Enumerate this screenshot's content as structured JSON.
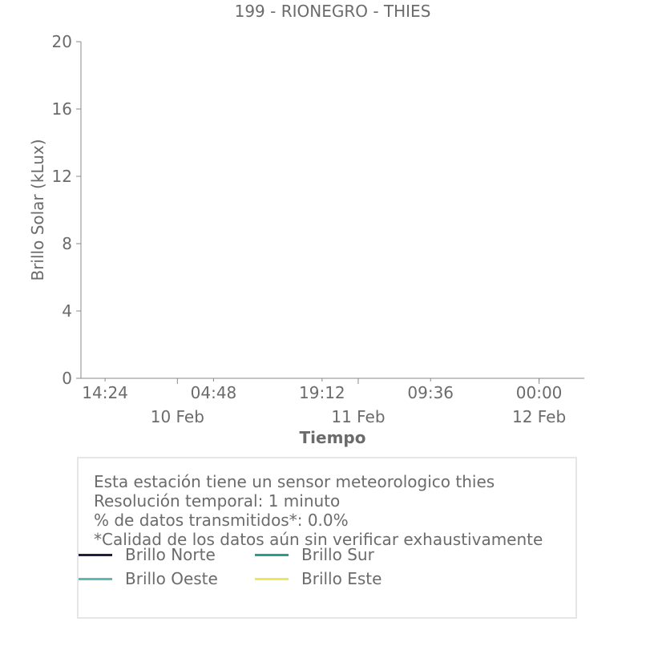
{
  "chart_data": {
    "type": "line",
    "title": "199 - RIONEGRO - THIES",
    "xlabel": "Tiempo",
    "ylabel": "Brillo Solar (kLux)",
    "ylim": [
      0,
      20
    ],
    "yticks": [
      0,
      4,
      8,
      12,
      16,
      20
    ],
    "xticks": [
      {
        "value": "2024-02-09T14:24",
        "label": "14:24"
      },
      {
        "value": "2024-02-10T04:48",
        "label": "04:48"
      },
      {
        "value": "2024-02-10T19:12",
        "label": "19:12"
      },
      {
        "value": "2024-02-11T09:36",
        "label": "09:36"
      },
      {
        "value": "2024-02-12T00:00",
        "label": "00:00"
      }
    ],
    "date_labels": [
      {
        "value": "2024-02-10T00:00",
        "label": "10 Feb"
      },
      {
        "value": "2024-02-11T00:00",
        "label": "11 Feb"
      },
      {
        "value": "2024-02-12T00:00",
        "label": "12 Feb"
      }
    ],
    "xlim": [
      "2024-02-09T11:12",
      "2024-02-12T06:00"
    ],
    "grid": false,
    "series": [
      {
        "name": "Brillo Norte",
        "color": "#1f1f3f",
        "values": []
      },
      {
        "name": "Brillo Sur",
        "color": "#2a9d8f",
        "values": []
      },
      {
        "name": "Brillo Oeste",
        "color": "#5bbcb5",
        "values": []
      },
      {
        "name": "Brillo Este",
        "color": "#ece85a",
        "values": []
      }
    ]
  },
  "info": {
    "line1": "Esta estación tiene un sensor meteorologico thies",
    "line2": "Resolución temporal: 1 minuto",
    "line3": "% de datos transmitidos*: 0.0%",
    "line4": "*Calidad de los datos aún sin verificar exhaustivamente"
  }
}
